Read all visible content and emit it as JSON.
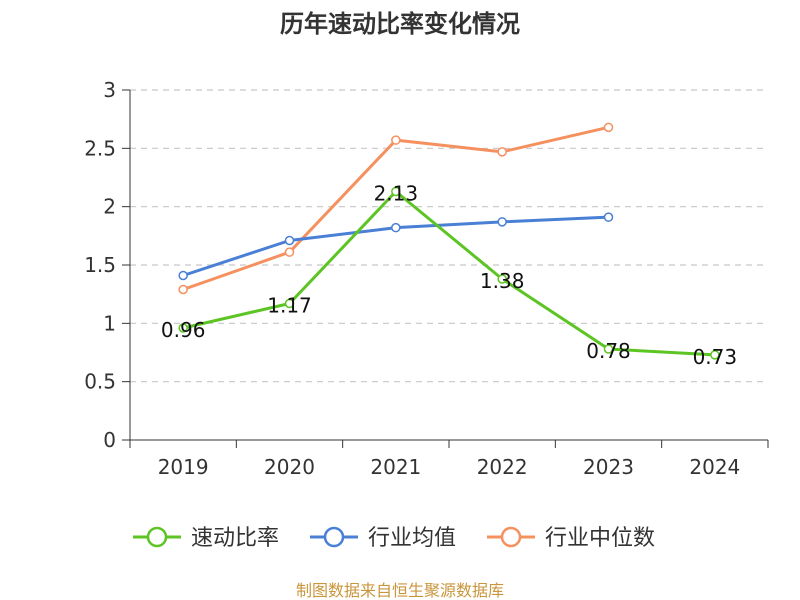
{
  "chart_data": {
    "type": "line",
    "title": "历年速动比率变化情况",
    "categories": [
      "2019",
      "2020",
      "2021",
      "2022",
      "2023",
      "2024"
    ],
    "ylim": [
      0,
      3
    ],
    "yticks": [
      "0",
      "0.5",
      "1",
      "1.5",
      "2",
      "2.5",
      "3"
    ],
    "grid": true,
    "legend_position": "bottom",
    "series": [
      {
        "name": "速动比率",
        "color": "#5cc423",
        "values": [
          0.96,
          1.17,
          2.13,
          1.38,
          0.78,
          0.73
        ],
        "labels": [
          "0.96",
          "1.17",
          "2.13",
          "1.38",
          "0.78",
          "0.73"
        ]
      },
      {
        "name": "行业均值",
        "color": "#4a7fd6",
        "values": [
          1.41,
          1.71,
          1.82,
          1.87,
          1.91,
          null
        ]
      },
      {
        "name": "行业中位数",
        "color": "#f5905f",
        "values": [
          1.29,
          1.61,
          2.57,
          2.47,
          2.68,
          null
        ]
      }
    ],
    "source": "制图数据来自恒生聚源数据库",
    "source_color": "#c8963c"
  }
}
